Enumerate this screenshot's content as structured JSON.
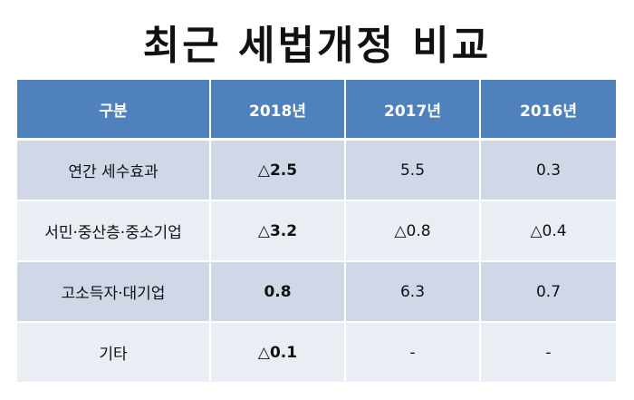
{
  "title": "최근 세법개정 비교",
  "table": {
    "headers": [
      "구분",
      "2018년",
      "2017년",
      "2016년"
    ],
    "rows": [
      {
        "label": "연간 세수효과",
        "y2018": "△2.5",
        "y2017": "5.5",
        "y2016": "0.3"
      },
      {
        "label": "서민·중산층·중소기업",
        "y2018": "△3.2",
        "y2017": "△0.8",
        "y2016": "△0.4"
      },
      {
        "label": "고소득자·대기업",
        "y2018": "0.8",
        "y2017": "6.3",
        "y2016": "0.7"
      },
      {
        "label": "기타",
        "y2018": "△0.1",
        "y2017": "-",
        "y2016": "-"
      }
    ]
  },
  "colors": {
    "header_bg": "#4f81bd",
    "row_odd_bg": "#d0d8e8",
    "row_even_bg": "#e9edf4"
  }
}
